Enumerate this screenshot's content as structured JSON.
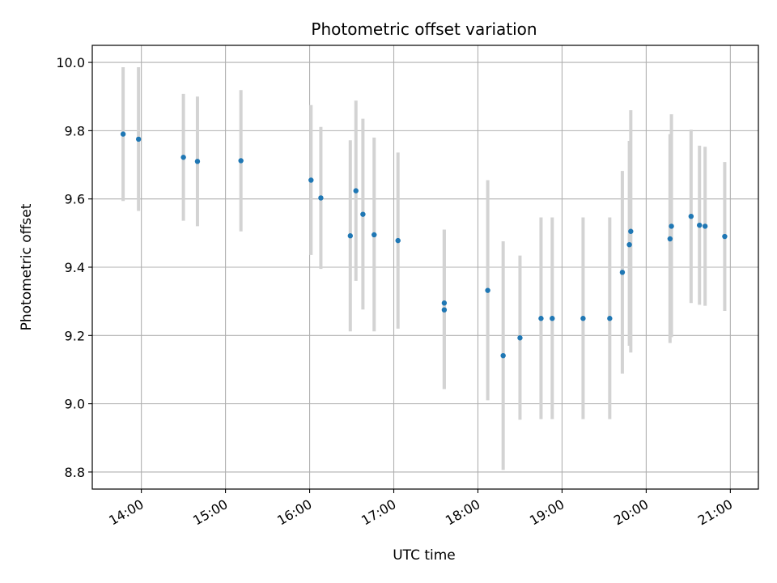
{
  "chart_data": {
    "type": "scatter",
    "title": "Photometric offset variation",
    "xlabel": "UTC time",
    "ylabel": "Photometric offset",
    "xlim": [
      "13:25",
      "21:20"
    ],
    "ylim": [
      8.75,
      10.05
    ],
    "x_ticks": [
      "14:00",
      "15:00",
      "16:00",
      "17:00",
      "18:00",
      "19:00",
      "20:00",
      "21:00"
    ],
    "y_ticks": [
      "8.8",
      "9.0",
      "9.2",
      "9.4",
      "9.6",
      "9.8",
      "10.0"
    ],
    "grid": true,
    "marker_color": "#1f77b4",
    "errorbar_color": "#d3d3d3",
    "points": [
      {
        "time": "13:47",
        "y": 9.79,
        "low": 9.594,
        "high": 9.986
      },
      {
        "time": "13:58",
        "y": 9.775,
        "low": 9.565,
        "high": 9.986
      },
      {
        "time": "14:30",
        "y": 9.722,
        "low": 9.536,
        "high": 9.908
      },
      {
        "time": "14:40",
        "y": 9.71,
        "low": 9.52,
        "high": 9.9
      },
      {
        "time": "15:11",
        "y": 9.712,
        "low": 9.505,
        "high": 9.919
      },
      {
        "time": "16:01",
        "y": 9.655,
        "low": 9.436,
        "high": 9.875
      },
      {
        "time": "16:08",
        "y": 9.603,
        "low": 9.395,
        "high": 9.811
      },
      {
        "time": "16:29",
        "y": 9.492,
        "low": 9.212,
        "high": 9.772
      },
      {
        "time": "16:33",
        "y": 9.624,
        "low": 9.36,
        "high": 9.888
      },
      {
        "time": "16:38",
        "y": 9.555,
        "low": 9.276,
        "high": 9.835
      },
      {
        "time": "16:46",
        "y": 9.495,
        "low": 9.212,
        "high": 9.78
      },
      {
        "time": "17:03",
        "y": 9.478,
        "low": 9.22,
        "high": 9.736
      },
      {
        "time": "17:36",
        "y": 9.295,
        "low": 9.043,
        "high": 9.51
      },
      {
        "time": "17:36",
        "y": 9.275,
        "low": 9.043,
        "high": 9.51
      },
      {
        "time": "18:07",
        "y": 9.332,
        "low": 9.01,
        "high": 9.655
      },
      {
        "time": "18:18",
        "y": 9.141,
        "low": 8.806,
        "high": 9.476
      },
      {
        "time": "18:30",
        "y": 9.193,
        "low": 8.953,
        "high": 9.434
      },
      {
        "time": "18:45",
        "y": 9.25,
        "low": 8.955,
        "high": 9.546
      },
      {
        "time": "18:53",
        "y": 9.25,
        "low": 8.955,
        "high": 9.546
      },
      {
        "time": "19:15",
        "y": 9.25,
        "low": 8.955,
        "high": 9.546
      },
      {
        "time": "19:34",
        "y": 9.25,
        "low": 8.955,
        "high": 9.546
      },
      {
        "time": "19:43",
        "y": 9.385,
        "low": 9.088,
        "high": 9.682
      },
      {
        "time": "19:48",
        "y": 9.466,
        "low": 9.17,
        "high": 9.77
      },
      {
        "time": "19:49",
        "y": 9.505,
        "low": 9.15,
        "high": 9.86
      },
      {
        "time": "20:17",
        "y": 9.483,
        "low": 9.178,
        "high": 9.79
      },
      {
        "time": "20:18",
        "y": 9.52,
        "low": 9.195,
        "high": 9.848
      },
      {
        "time": "20:32",
        "y": 9.549,
        "low": 9.295,
        "high": 9.803
      },
      {
        "time": "20:38",
        "y": 9.523,
        "low": 9.29,
        "high": 9.756
      },
      {
        "time": "20:42",
        "y": 9.52,
        "low": 9.287,
        "high": 9.753
      },
      {
        "time": "20:56",
        "y": 9.49,
        "low": 9.272,
        "high": 9.708
      }
    ]
  }
}
